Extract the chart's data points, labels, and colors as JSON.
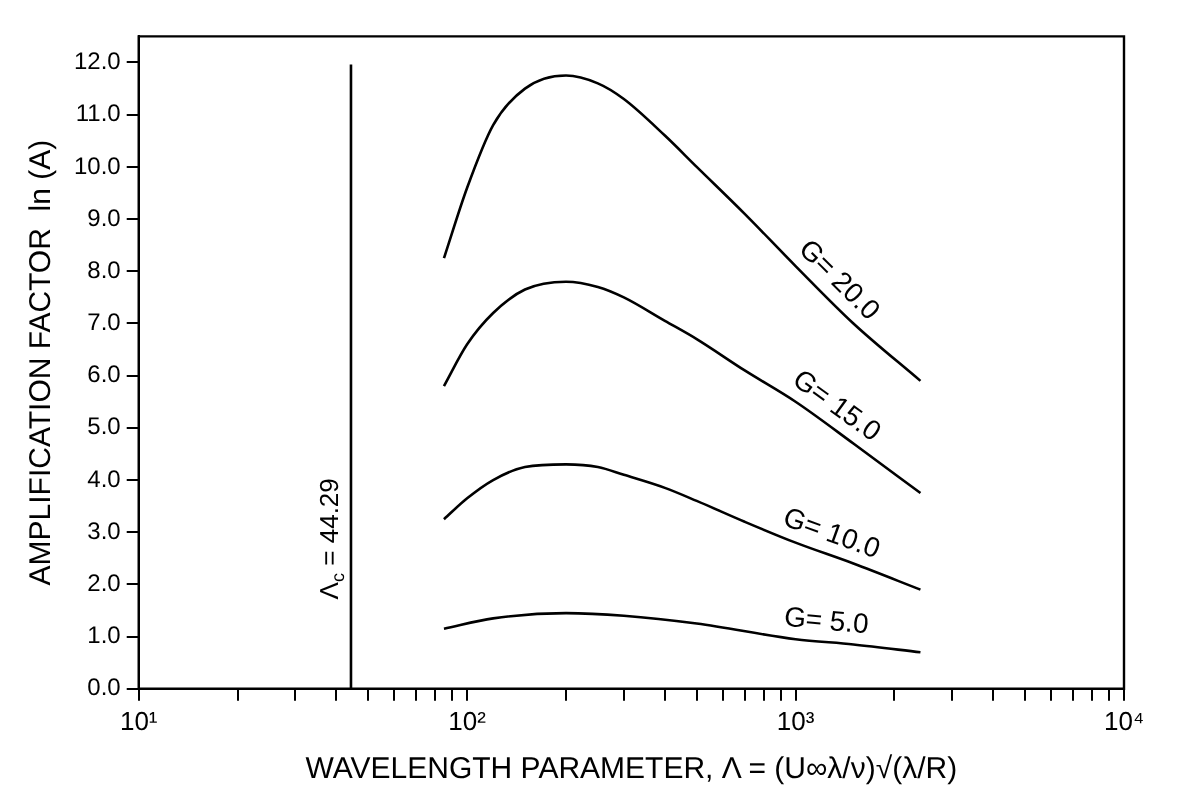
{
  "chart_data": {
    "type": "line",
    "xlabel": "WAVELENGTH PARAMETER, Λ = (U∞λ/ν)√(λ/R)",
    "ylabel": "AMPLIFICATION FACTOR  ln (A)",
    "log": "x",
    "grid": false,
    "legend": false,
    "marker": "none",
    "line_style": "solid",
    "xlim": [
      10,
      10000
    ],
    "ylim": [
      0,
      12.5
    ],
    "xticks": [
      {
        "value": 10,
        "label": "10¹"
      },
      {
        "value": 20,
        "label": null
      },
      {
        "value": 30,
        "label": null
      },
      {
        "value": 40,
        "label": null
      },
      {
        "value": 50,
        "label": null
      },
      {
        "value": 60,
        "label": null
      },
      {
        "value": 70,
        "label": null
      },
      {
        "value": 80,
        "label": null
      },
      {
        "value": 90,
        "label": null
      },
      {
        "value": 100,
        "label": "10²"
      },
      {
        "value": 200,
        "label": null
      },
      {
        "value": 300,
        "label": null
      },
      {
        "value": 400,
        "label": null
      },
      {
        "value": 500,
        "label": null
      },
      {
        "value": 600,
        "label": null
      },
      {
        "value": 700,
        "label": null
      },
      {
        "value": 800,
        "label": null
      },
      {
        "value": 900,
        "label": null
      },
      {
        "value": 1000,
        "label": "10³"
      },
      {
        "value": 2000,
        "label": null
      },
      {
        "value": 3000,
        "label": null
      },
      {
        "value": 4000,
        "label": null
      },
      {
        "value": 5000,
        "label": null
      },
      {
        "value": 6000,
        "label": null
      },
      {
        "value": 7000,
        "label": null
      },
      {
        "value": 8000,
        "label": null
      },
      {
        "value": 9000,
        "label": null
      },
      {
        "value": 10000,
        "label": "10⁴"
      }
    ],
    "yticks": [
      {
        "value": 0,
        "label": "0.0"
      },
      {
        "value": 1,
        "label": "1.0"
      },
      {
        "value": 2,
        "label": "2.0"
      },
      {
        "value": 3,
        "label": "3.0"
      },
      {
        "value": 4,
        "label": "4.0"
      },
      {
        "value": 5,
        "label": "5.0"
      },
      {
        "value": 6,
        "label": "6.0"
      },
      {
        "value": 7,
        "label": "7.0"
      },
      {
        "value": 8,
        "label": "8.0"
      },
      {
        "value": 9,
        "label": "9.0"
      },
      {
        "value": 10,
        "label": "10.0"
      },
      {
        "value": 11,
        "label": "11.0"
      },
      {
        "value": 12,
        "label": "12.0"
      }
    ],
    "ref_lines": [
      {
        "axis": "x",
        "value": 44.29,
        "label": "Λ$_{c}$ = 44.29",
        "color": "#000000"
      }
    ],
    "series": [
      {
        "name": "G= 20.0",
        "color": "#000000",
        "x": [
          85,
          100,
          120,
          150,
          200,
          250,
          300,
          400,
          500,
          700,
          1000,
          1500,
          2400
        ],
        "values": [
          8.25,
          9.6,
          10.8,
          11.5,
          11.75,
          11.6,
          11.3,
          10.6,
          10.0,
          9.1,
          8.1,
          7.0,
          5.9
        ]
      },
      {
        "name": "G= 15.0",
        "color": "#000000",
        "x": [
          85,
          100,
          120,
          150,
          200,
          250,
          300,
          400,
          500,
          700,
          1000,
          1500,
          2400
        ],
        "values": [
          5.8,
          6.6,
          7.2,
          7.65,
          7.8,
          7.7,
          7.5,
          7.05,
          6.7,
          6.1,
          5.5,
          4.7,
          3.75
        ]
      },
      {
        "name": "G= 10.0",
        "color": "#000000",
        "x": [
          85,
          100,
          120,
          150,
          200,
          250,
          300,
          400,
          500,
          700,
          1000,
          1500,
          2400
        ],
        "values": [
          3.25,
          3.65,
          4.0,
          4.25,
          4.3,
          4.25,
          4.1,
          3.85,
          3.6,
          3.2,
          2.8,
          2.4,
          1.9
        ]
      },
      {
        "name": "G= 5.0",
        "color": "#000000",
        "x": [
          85,
          120,
          200,
          300,
          500,
          1000,
          1500,
          2400
        ],
        "values": [
          1.15,
          1.35,
          1.45,
          1.4,
          1.25,
          0.95,
          0.85,
          0.7
        ]
      }
    ]
  }
}
